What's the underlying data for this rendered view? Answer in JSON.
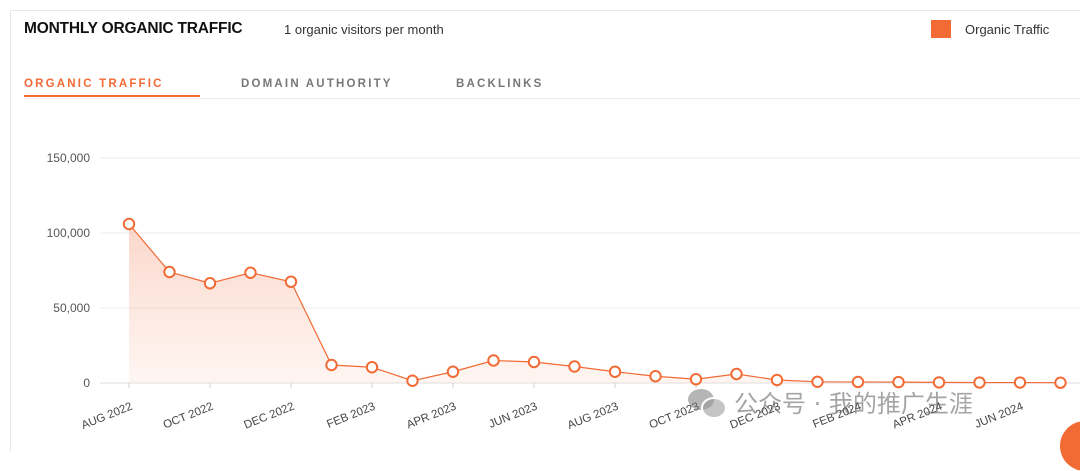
{
  "header": {
    "title": "MONTHLY ORGANIC TRAFFIC",
    "subtitle": "1 organic visitors per month"
  },
  "legend": {
    "label": "Organic Traffic",
    "color": "#f26a34"
  },
  "tabs": [
    {
      "label": "ORGANIC TRAFFIC",
      "active": true
    },
    {
      "label": "DOMAIN AUTHORITY",
      "active": false
    },
    {
      "label": "BACKLINKS",
      "active": false
    }
  ],
  "watermark": {
    "text": "公众号 · 我的推广生涯"
  },
  "chart_data": {
    "type": "area",
    "title": "MONTHLY ORGANIC TRAFFIC",
    "ylim": [
      0,
      150000
    ],
    "y_ticks": [
      "0",
      "50,000",
      "100,000",
      "150,000"
    ],
    "x_tick_labels": [
      "AUG 2022",
      "OCT 2022",
      "DEC 2022",
      "FEB 2023",
      "APR 2023",
      "JUN 2023",
      "AUG 2023",
      "OCT 2023",
      "DEC 2023",
      "FEB 2024",
      "APR 2024",
      "JUN 2024"
    ],
    "categories": [
      "AUG 2022",
      "SEP 2022",
      "OCT 2022",
      "NOV 2022",
      "DEC 2022",
      "JAN 2023",
      "FEB 2023",
      "MAR 2023",
      "APR 2023",
      "MAY 2023",
      "JUN 2023",
      "JUL 2023",
      "AUG 2023",
      "SEP 2023",
      "OCT 2023",
      "NOV 2023",
      "DEC 2023",
      "JAN 2024",
      "FEB 2024",
      "MAR 2024",
      "APR 2024",
      "MAY 2024",
      "JUN 2024",
      "JUL 2024"
    ],
    "series": [
      {
        "name": "Organic Traffic",
        "color": "#f26a34",
        "values": [
          106000,
          74000,
          66500,
          73500,
          67500,
          12000,
          10500,
          1500,
          7500,
          15000,
          14000,
          11000,
          7500,
          4500,
          2500,
          6000,
          2000,
          800,
          700,
          600,
          400,
          300,
          300,
          200
        ]
      }
    ],
    "grid": true,
    "legend_position": "top-right"
  }
}
